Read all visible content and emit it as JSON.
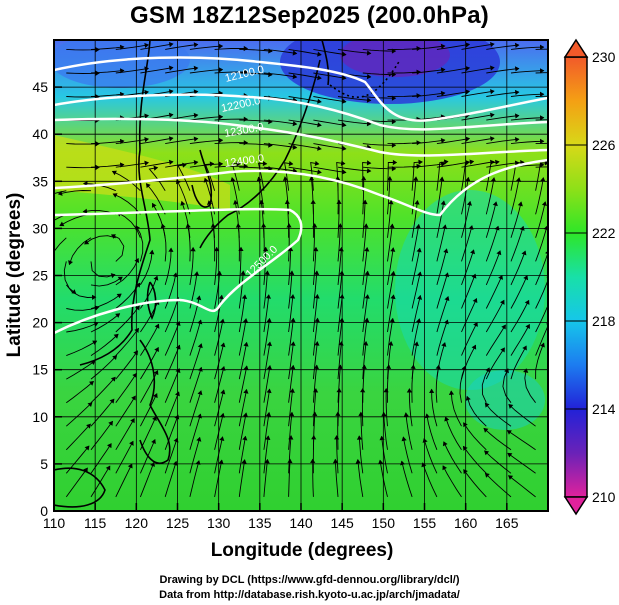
{
  "title": "GSM 18Z12Sep2025 (200.0hPa)",
  "x_axis": {
    "label": "Longitude (degrees)",
    "ticks": [
      "110",
      "115",
      "120",
      "125",
      "130",
      "135",
      "140",
      "145",
      "150",
      "155",
      "160",
      "165"
    ],
    "range": [
      110,
      170
    ]
  },
  "y_axis": {
    "label": "Latitude  (degrees)",
    "ticks": [
      "0",
      "5",
      "10",
      "15",
      "20",
      "25",
      "30",
      "35",
      "40",
      "45"
    ],
    "range": [
      0,
      50
    ]
  },
  "colorbar": {
    "labels": [
      "230",
      "226",
      "222",
      "218",
      "214",
      "210"
    ],
    "range": [
      210,
      230
    ],
    "colors": [
      "#e0229c",
      "#6a22b8",
      "#2222d8",
      "#1c7cf0",
      "#16c6ea",
      "#18e0a8",
      "#2ee628",
      "#8ee018",
      "#d8d818",
      "#f4a014",
      "#f25a2a"
    ]
  },
  "contour_labels": [
    "12100.0",
    "12200.0",
    "12300.0",
    "12400.0",
    "12500.0"
  ],
  "credits": {
    "line1": "Drawing by DCL (https://www.gfd-dennou.org/library/dcl/)",
    "line2": "Data from http://database.rish.kyoto-u.ac.jp/arch/jmadata/"
  }
}
